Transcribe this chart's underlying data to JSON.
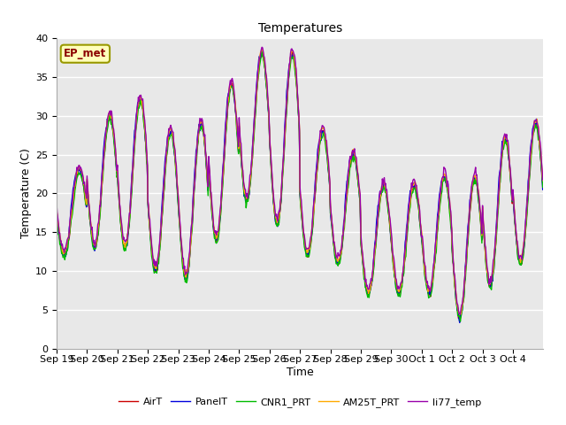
{
  "title": "Temperatures",
  "xlabel": "Time",
  "ylabel": "Temperature (C)",
  "ylim": [
    0,
    40
  ],
  "annotation": "EP_met",
  "plot_bg_color": "#e8e8e8",
  "fig_bg_color": "#ffffff",
  "legend_entries": [
    "AirT",
    "PanelT",
    "CNR1_PRT",
    "AM25T_PRT",
    "li77_temp"
  ],
  "line_colors": [
    "#cc0000",
    "#0000dd",
    "#00bb00",
    "#ffaa00",
    "#9900aa"
  ],
  "line_width": 1.0,
  "n_days": 16,
  "points_per_day": 48,
  "tick_labels": [
    "Sep 19",
    "Sep 20",
    "Sep 21",
    "Sep 22",
    "Sep 23",
    "Sep 24",
    "Sep 25",
    "Sep 26",
    "Sep 27",
    "Sep 28",
    "Sep 29",
    "Sep 30",
    "Oct 1",
    "Oct 2",
    "Oct 3",
    "Oct 4"
  ],
  "daily_max": [
    23,
    30,
    32,
    28,
    29,
    34,
    38,
    38,
    28,
    25,
    21,
    21,
    22,
    22,
    27,
    29
  ],
  "daily_min": [
    12,
    13,
    13,
    10,
    9,
    14,
    19,
    16,
    12,
    11,
    7,
    7,
    7,
    4,
    8,
    11
  ]
}
